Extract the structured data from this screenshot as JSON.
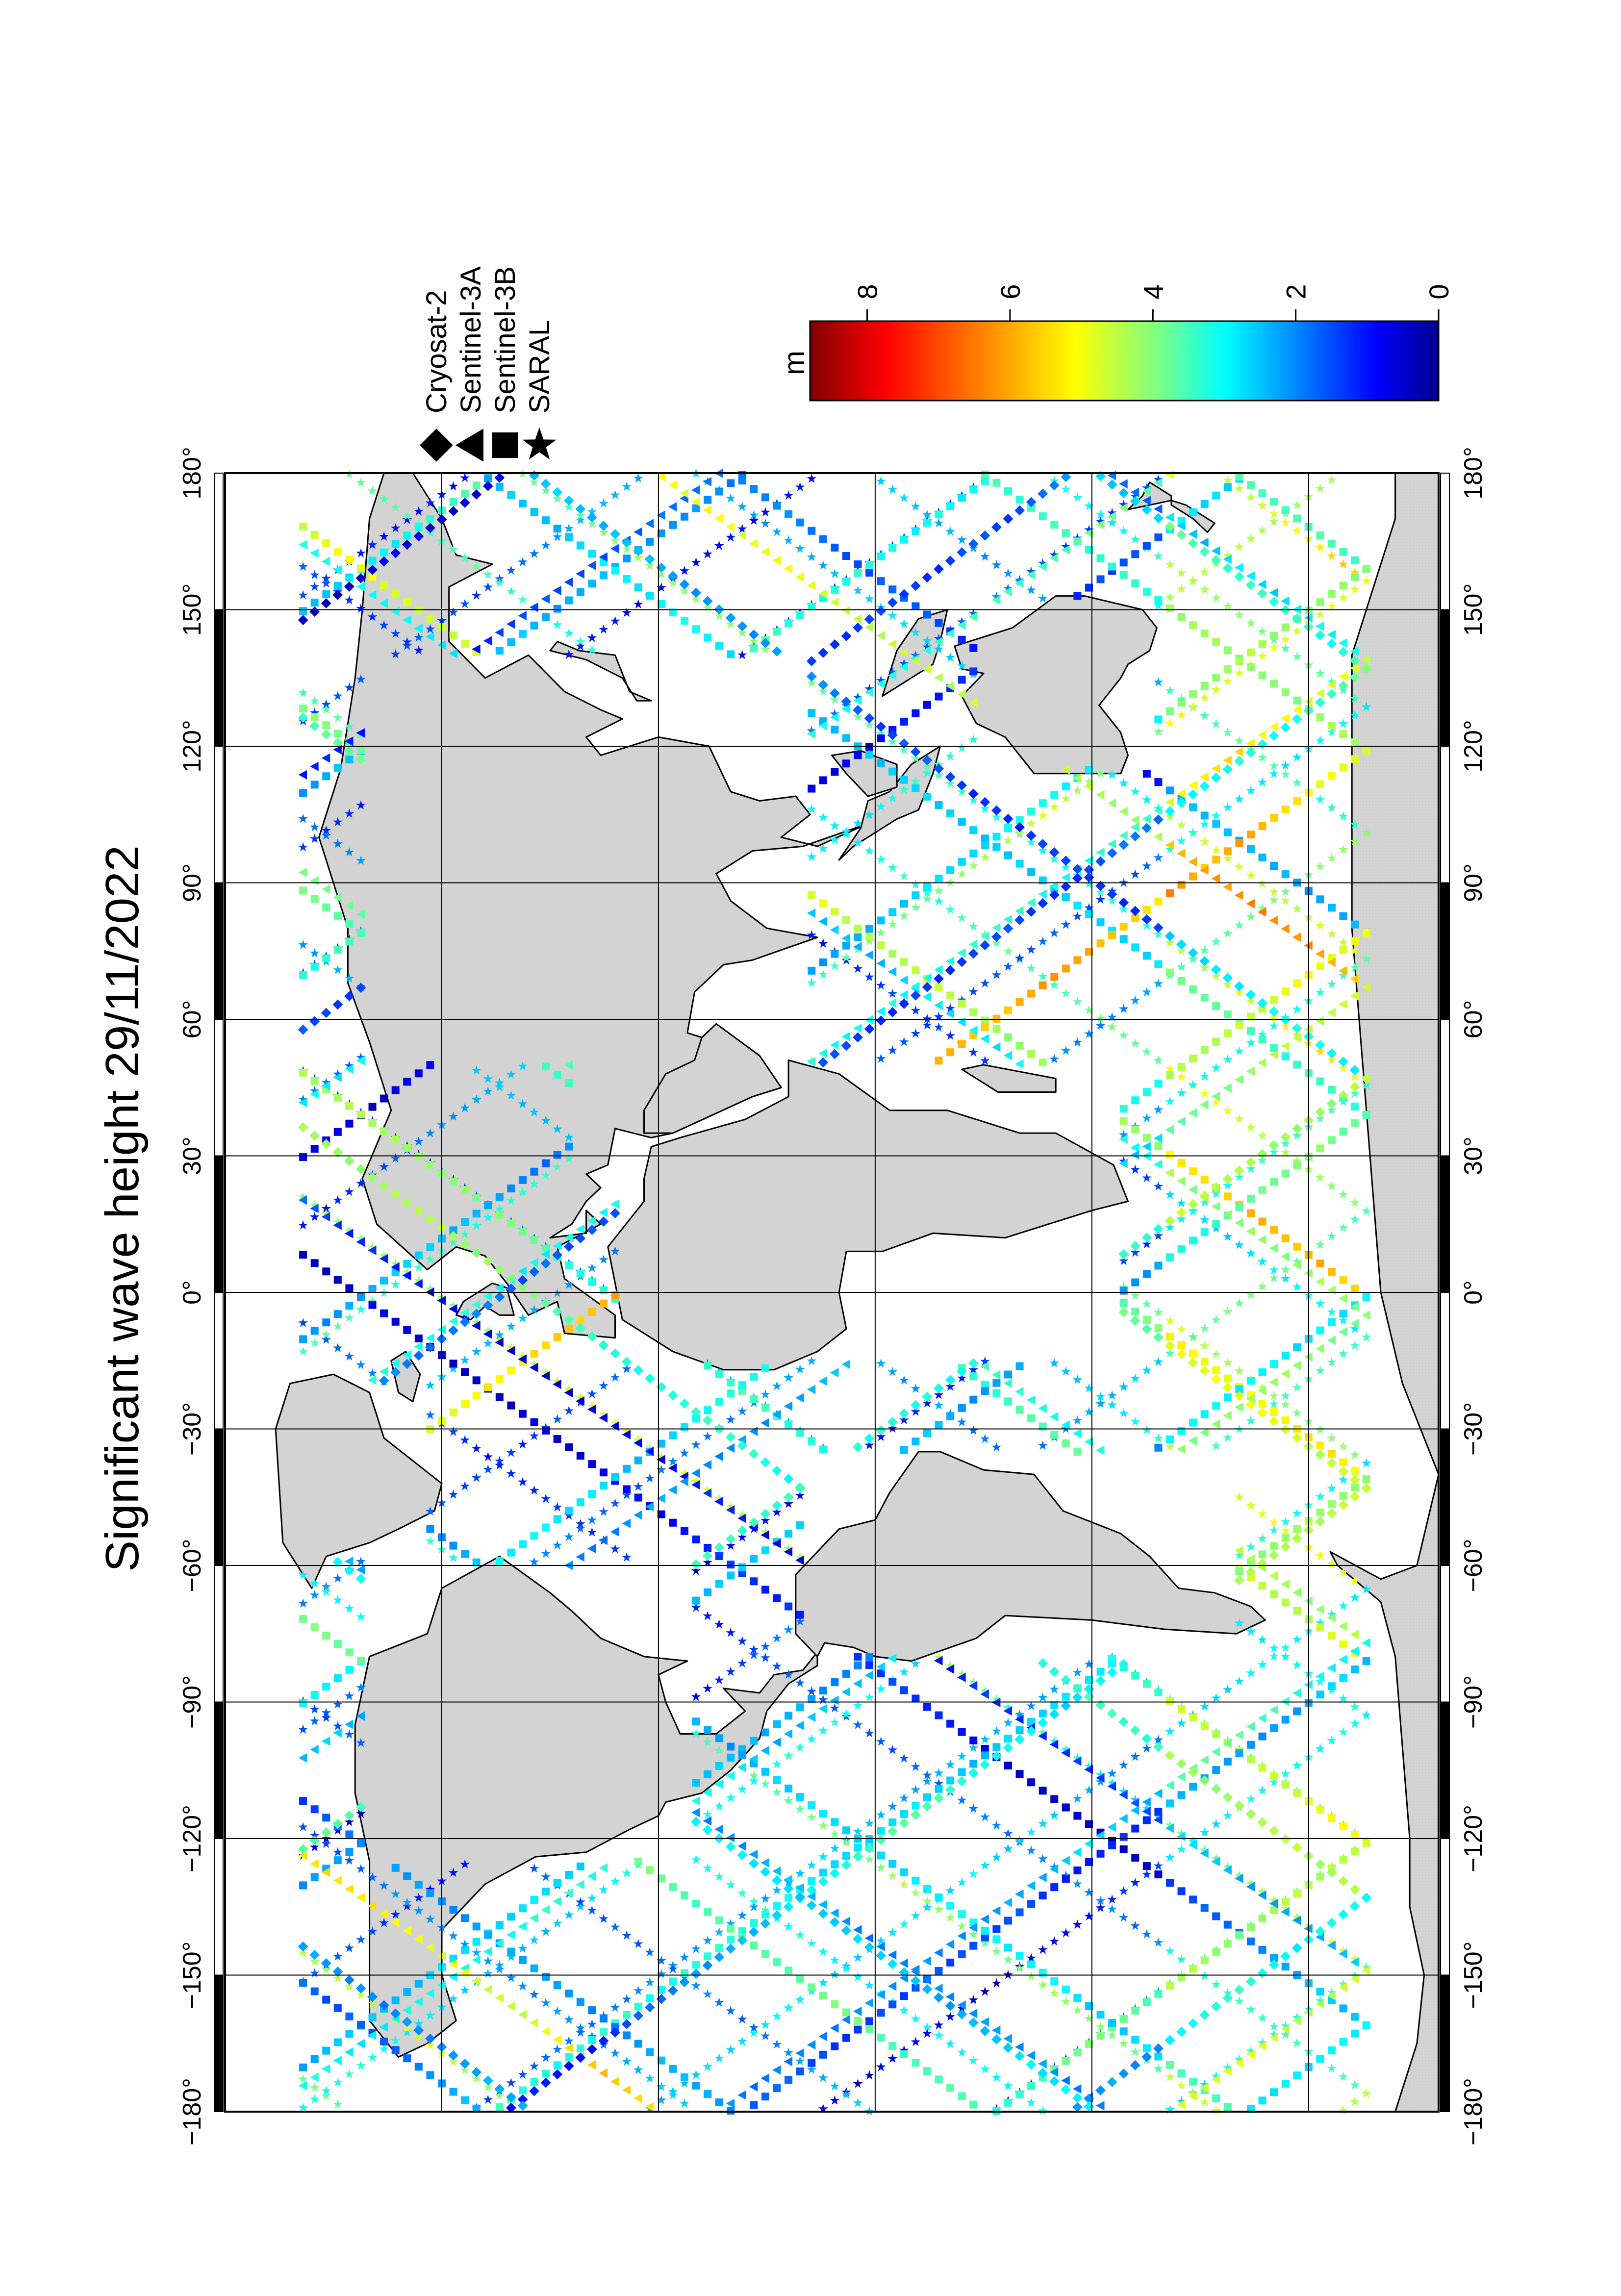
{
  "title": "Significant wave height 29/11/2022",
  "colorbar": {
    "unit": "m",
    "ticks": [
      0,
      2,
      4,
      6,
      8
    ],
    "range": [
      0,
      8.8
    ],
    "colors": [
      "#00008f",
      "#0000ff",
      "#0080ff",
      "#00ffff",
      "#80ff80",
      "#ffff00",
      "#ff8000",
      "#ff0000",
      "#800000"
    ]
  },
  "legend": [
    {
      "symbol": "diamond",
      "label": "Cryosat-2"
    },
    {
      "symbol": "triangle",
      "label": "Sentinel-3A"
    },
    {
      "symbol": "square",
      "label": "Sentinel-3B"
    },
    {
      "symbol": "star",
      "label": "SARAL"
    }
  ],
  "map": {
    "projection": "cylindrical (rotated 90°)",
    "lon_range": [
      -180,
      180
    ],
    "lat_range": [
      -78,
      90
    ],
    "lon_ticks": [
      -180,
      -150,
      -120,
      -90,
      -60,
      -30,
      0,
      30,
      60,
      90,
      120,
      150,
      180
    ],
    "lon_tick_labels": [
      "−180°",
      "−150°",
      "−120°",
      "−90°",
      "−60°",
      "−30°",
      "0°",
      "30°",
      "60°",
      "90°",
      "120°",
      "150°",
      "180°"
    ],
    "lat_grid": [
      -60,
      -30,
      0,
      30,
      60
    ],
    "land_color": "#d3d3d3",
    "ocean_color": "#ffffff",
    "antarctic_color": "#d3d3d3"
  }
}
